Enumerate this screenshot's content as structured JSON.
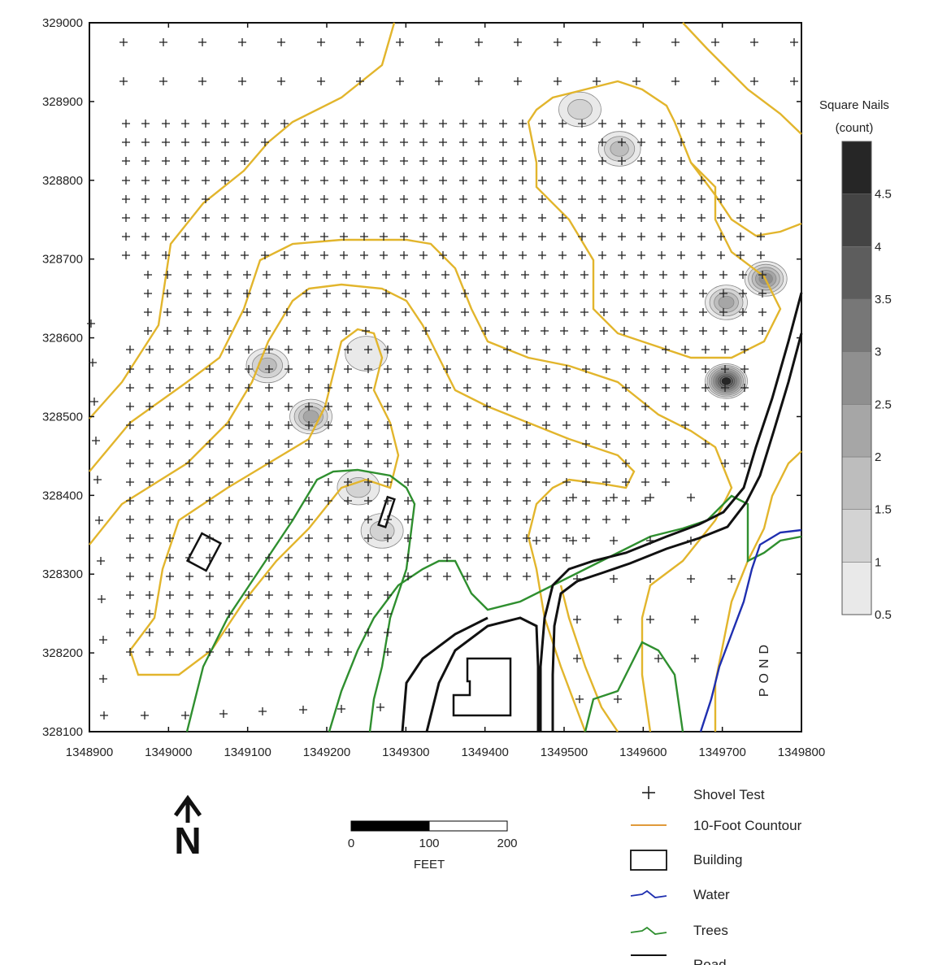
{
  "chart_data": {
    "type": "map",
    "x_ticks": [
      "1348900",
      "1349000",
      "1349100",
      "1349200",
      "1349300",
      "1349400",
      "1349500",
      "1349600",
      "1349700",
      "1349800"
    ],
    "y_ticks": [
      "328100",
      "328200",
      "328300",
      "328400",
      "328500",
      "328600",
      "328700",
      "328800",
      "328900",
      "329000"
    ],
    "xlim": [
      1348900,
      1349800
    ],
    "ylim": [
      328100,
      329000
    ],
    "colorbar": {
      "title_line1": "Square Nails",
      "title_line2": "(count)",
      "levels": [
        0.5,
        1,
        1.5,
        2,
        2.5,
        3,
        3.5,
        4,
        4.5,
        5
      ],
      "tick_labels": [
        "0.5",
        "1",
        "1.5",
        "2",
        "2.5",
        "3",
        "3.5",
        "4",
        "4.5"
      ],
      "colors": [
        "#e9e9e9",
        "#d3d3d3",
        "#bdbdbd",
        "#a6a6a6",
        "#8f8f8f",
        "#777777",
        "#5d5d5d",
        "#444444",
        "#262626"
      ]
    },
    "hotspots": [
      {
        "x": 1349520,
        "y": 328890,
        "value": 1.5
      },
      {
        "x": 1349570,
        "y": 328840,
        "value": 2
      },
      {
        "x": 1349755,
        "y": 328675,
        "value": 3
      },
      {
        "x": 1349705,
        "y": 328645,
        "value": 2.5
      },
      {
        "x": 1349705,
        "y": 328545,
        "value": 5
      },
      {
        "x": 1349125,
        "y": 328565,
        "value": 2
      },
      {
        "x": 1349180,
        "y": 328500,
        "value": 2.5
      },
      {
        "x": 1349250,
        "y": 328580,
        "value": 1
      },
      {
        "x": 1349240,
        "y": 328410,
        "value": 1.5
      },
      {
        "x": 1349270,
        "y": 328355,
        "value": 1.5
      }
    ],
    "pond_label": "POND"
  },
  "legend": {
    "items": [
      {
        "label": "Shovel Test",
        "symbol": "plus",
        "color": "#222222"
      },
      {
        "label": "10-Foot Countour",
        "symbol": "line",
        "color": "#e09a3a"
      },
      {
        "label": "Building",
        "symbol": "box",
        "color": "#111111"
      },
      {
        "label": "Water",
        "symbol": "wave",
        "color": "#1f2fb0"
      },
      {
        "label": "Trees",
        "symbol": "wave",
        "color": "#2f8f2f"
      },
      {
        "label": "Road",
        "symbol": "line",
        "color": "#111111"
      }
    ]
  },
  "scale_bar": {
    "labels": [
      "0",
      "100",
      "200"
    ],
    "unit": "FEET"
  },
  "north_arrow": {
    "label": "N"
  },
  "colors": {
    "contour": "#e2b52c",
    "trees": "#2f8f2f",
    "water": "#1f2fb0",
    "road": "#111111",
    "frame": "#111111"
  }
}
